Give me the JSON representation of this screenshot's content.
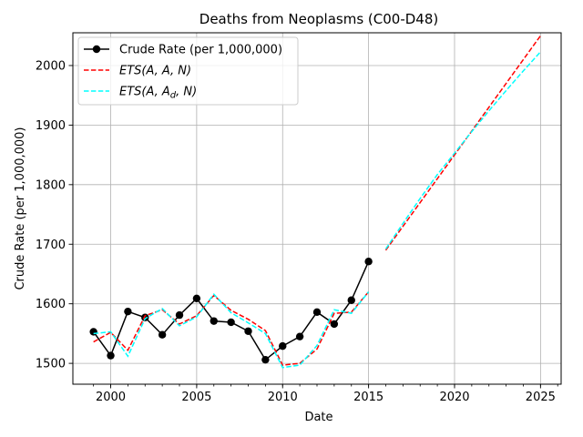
{
  "chart_data": {
    "type": "line",
    "title": "Deaths from Neoplasms (C00-D48)",
    "xlabel": "Date",
    "ylabel": "Crude Rate (per 1,000,000)",
    "xlim": [
      1997.8,
      2026.2
    ],
    "ylim": [
      1465,
      2055
    ],
    "xticks": [
      2000,
      2005,
      2010,
      2015,
      2020,
      2025
    ],
    "yticks": [
      1500,
      1600,
      1700,
      1800,
      1900,
      2000
    ],
    "xminor": [
      1999,
      2000,
      2001,
      2002,
      2003,
      2004,
      2005,
      2006,
      2007,
      2008,
      2009,
      2010,
      2011,
      2012,
      2013,
      2014,
      2015,
      2016,
      2017,
      2018,
      2019,
      2020,
      2021,
      2022,
      2023,
      2024,
      2025,
      2026
    ],
    "grid": true,
    "legend_position": "top-left",
    "series": [
      {
        "name": "Crude Rate (per 1,000,000)",
        "color": "#000000",
        "style": "solid-marker",
        "x": [
          1999,
          2000,
          2001,
          2002,
          2003,
          2004,
          2005,
          2006,
          2007,
          2008,
          2009,
          2010,
          2011,
          2012,
          2013,
          2014,
          2015
        ],
        "y": [
          1553,
          1513,
          1587,
          1577,
          1548,
          1581,
          1609,
          1571,
          1569,
          1554,
          1506,
          1529,
          1545,
          1586,
          1566,
          1606,
          1671
        ]
      },
      {
        "name": "ETS(A, A, N)",
        "color": "#ff0000",
        "style": "dashed",
        "x": [
          1999,
          2000,
          2001,
          2002,
          2003,
          2004,
          2005,
          2006,
          2007,
          2008,
          2009,
          2010,
          2011,
          2012,
          2013,
          2014,
          2015
        ],
        "y": [
          1536,
          1552,
          1522,
          1580,
          1590,
          1566,
          1580,
          1614,
          1589,
          1574,
          1555,
          1497,
          1500,
          1524,
          1584,
          1586,
          1620
        ]
      },
      {
        "name": "ETS(A, A, N) forecast",
        "color": "#ff0000",
        "style": "dashed",
        "x": [
          2016,
          2025
        ],
        "y": [
          1690,
          2050
        ]
      },
      {
        "name": "ETS(A, A_d, N)",
        "color": "#00ffff",
        "style": "dashed",
        "x": [
          1999,
          2000,
          2001,
          2002,
          2003,
          2004,
          2005,
          2006,
          2007,
          2008,
          2009,
          2010,
          2011,
          2012,
          2013,
          2014,
          2015
        ],
        "y": [
          1550,
          1553,
          1512,
          1575,
          1592,
          1563,
          1578,
          1616,
          1585,
          1568,
          1550,
          1493,
          1497,
          1530,
          1590,
          1584,
          1620
        ]
      },
      {
        "name": "ETS(A, A_d, N) forecast",
        "color": "#00ffff",
        "style": "dashed",
        "x": [
          2016,
          2017,
          2018,
          2019,
          2020,
          2021,
          2022,
          2023,
          2024,
          2025
        ],
        "y": [
          1692,
          1735,
          1777,
          1817,
          1853,
          1889,
          1924,
          1958,
          1991,
          2023
        ]
      }
    ],
    "legend": [
      {
        "label_main": "Crude Rate (per 1,000,000)",
        "color": "#000000",
        "style": "solid-marker"
      },
      {
        "label_main": "ETS(A, A, N)",
        "color": "#ff0000",
        "style": "dashed"
      },
      {
        "label_main": "ETS(A, A",
        "label_sub": "d",
        "label_end": ", N)",
        "color": "#00ffff",
        "style": "dashed"
      }
    ]
  }
}
